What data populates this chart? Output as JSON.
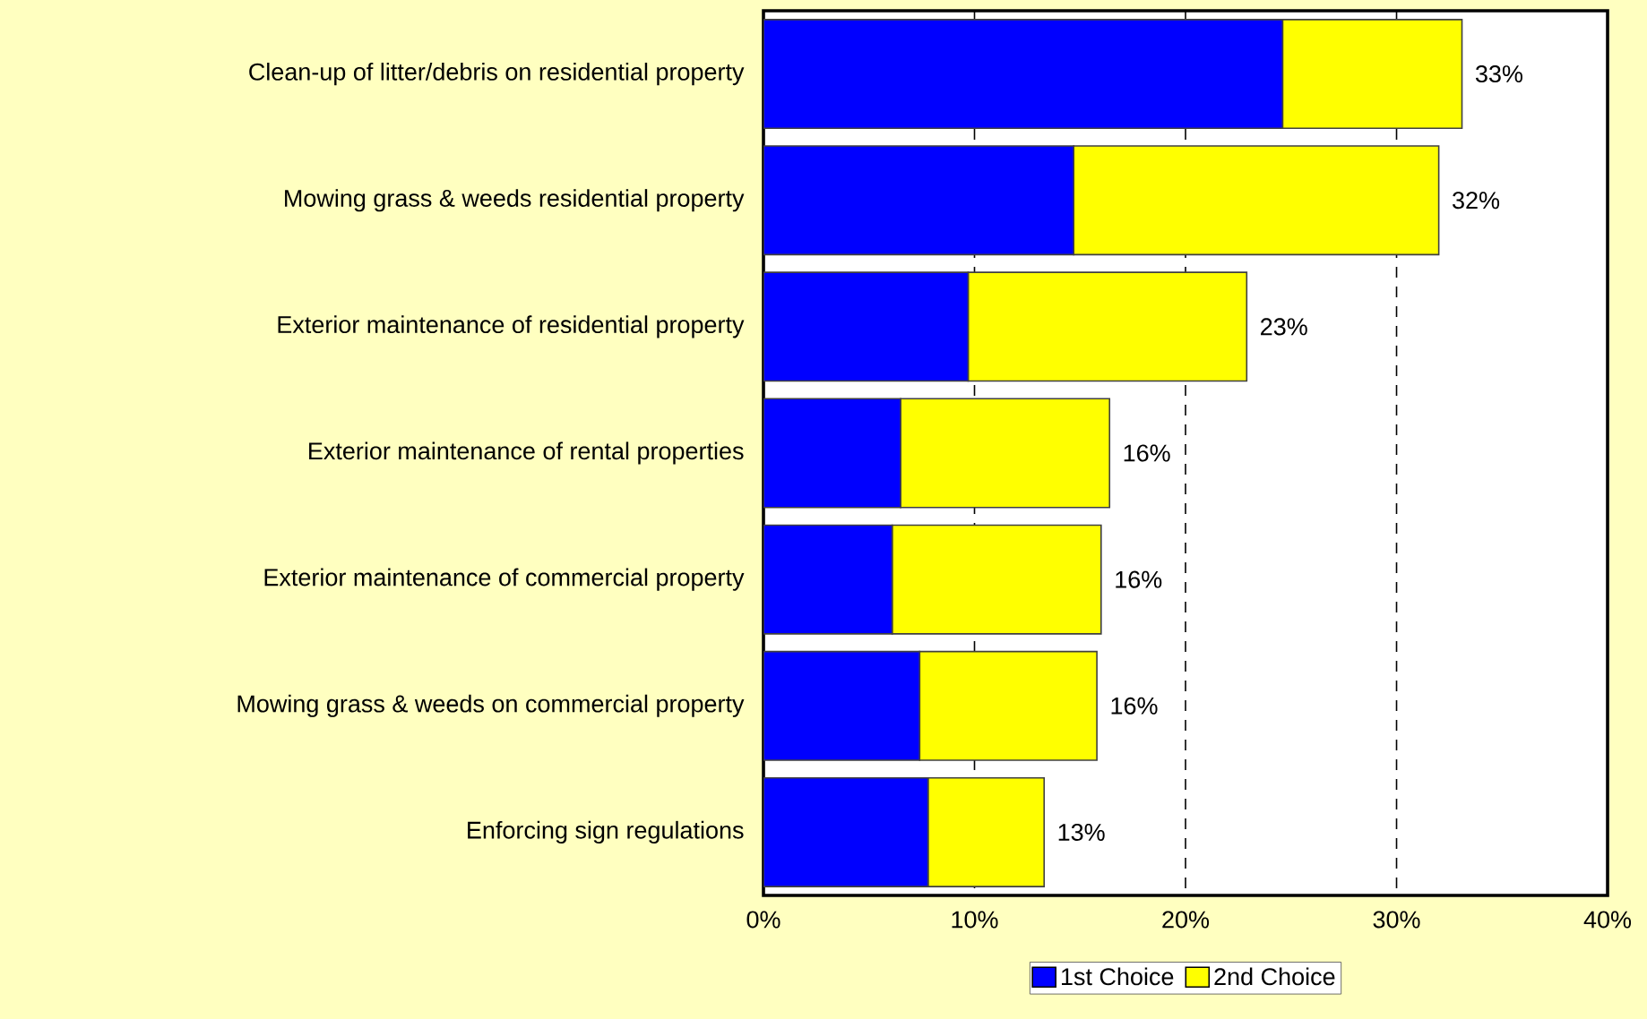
{
  "chart_data": {
    "type": "bar",
    "orientation": "horizontal",
    "stacked": true,
    "categories": [
      "Clean-up of litter/debris on residential property",
      "Mowing grass & weeds residential property",
      "Exterior maintenance of residential property",
      "Exterior maintenance of rental properties",
      "Exterior maintenance of commercial property",
      "Mowing grass & weeds on commercial property",
      "Enforcing sign regulations"
    ],
    "series": [
      {
        "name": "1st Choice",
        "color": "#0000ff",
        "values": [
          24.6,
          14.7,
          9.7,
          6.5,
          6.1,
          7.4,
          7.8
        ]
      },
      {
        "name": "2nd Choice",
        "color": "#ffff00",
        "values": [
          8.5,
          17.3,
          13.2,
          9.9,
          9.9,
          8.4,
          5.5
        ]
      }
    ],
    "totals": [
      "33%",
      "32%",
      "23%",
      "16%",
      "16%",
      "16%",
      "13%"
    ],
    "xlim": [
      0,
      40
    ],
    "xticks": [
      {
        "value": 0,
        "label": "0%"
      },
      {
        "value": 10,
        "label": "10%"
      },
      {
        "value": 20,
        "label": "20%"
      },
      {
        "value": 30,
        "label": "30%"
      },
      {
        "value": 40,
        "label": "40%"
      }
    ],
    "grid": "x",
    "legend": "bottom"
  }
}
